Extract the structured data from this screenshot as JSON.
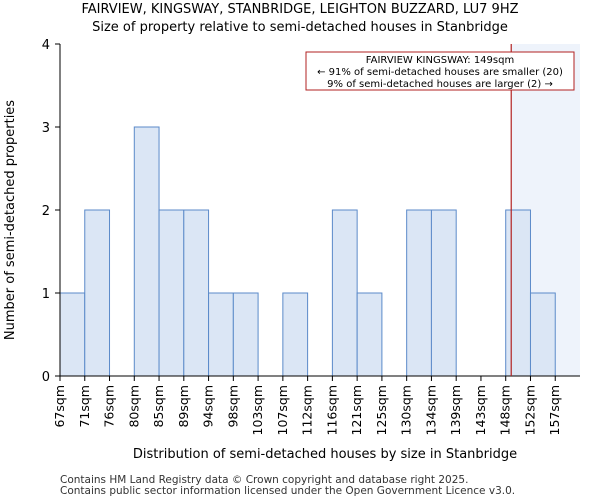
{
  "title": "FAIRVIEW, KINGSWAY, STANBRIDGE, LEIGHTON BUZZARD, LU7 9HZ",
  "subtitle": "Size of property relative to semi-detached houses in Stanbridge",
  "footer": [
    "Contains HM Land Registry data © Crown copyright and database right 2025.",
    "Contains public sector information licensed under the Open Government Licence v3.0."
  ],
  "chart_data": {
    "type": "bar",
    "xlabel": "Distribution of semi-detached houses by size in Stanbridge",
    "ylabel": "Number of semi-detached properties",
    "categories": [
      "67sqm",
      "71sqm",
      "76sqm",
      "80sqm",
      "85sqm",
      "89sqm",
      "94sqm",
      "98sqm",
      "103sqm",
      "107sqm",
      "112sqm",
      "116sqm",
      "121sqm",
      "125sqm",
      "130sqm",
      "134sqm",
      "139sqm",
      "143sqm",
      "148sqm",
      "152sqm",
      "157sqm"
    ],
    "values": [
      1,
      2,
      0,
      3,
      2,
      2,
      1,
      1,
      0,
      1,
      0,
      2,
      1,
      0,
      2,
      2,
      0,
      0,
      2,
      1,
      0
    ],
    "ylim": [
      0,
      4
    ],
    "yticks": [
      0,
      1,
      2,
      3,
      4
    ],
    "grid": false,
    "marker": {
      "value_sqm": 149,
      "color": "#b22222",
      "annotation": [
        "FAIRVIEW KINGSWAY: 149sqm",
        "← 91% of semi-detached houses are smaller (20)",
        "9% of semi-detached houses are larger (2) →"
      ]
    },
    "colors": {
      "bar_fill": "#dbe6f5",
      "bar_stroke": "#5b8ac9",
      "highlight_bg": "#eef3fb"
    }
  }
}
